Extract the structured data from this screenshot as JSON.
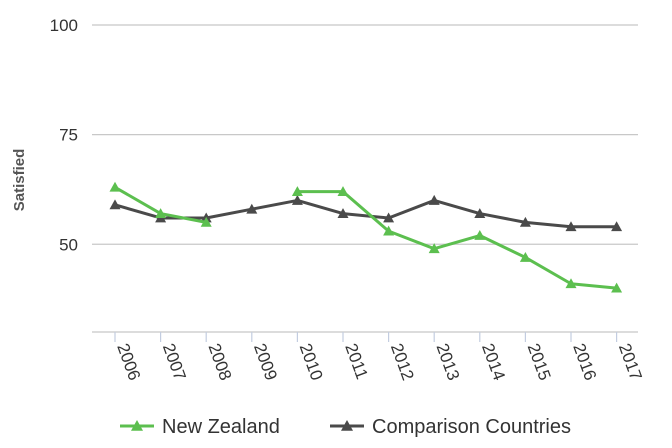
{
  "chart_data": {
    "type": "line",
    "title": "",
    "xlabel": "",
    "ylabel": "Satisfied",
    "categories": [
      "2006",
      "2007",
      "2008",
      "2009",
      "2010",
      "2011",
      "2012",
      "2013",
      "2014",
      "2015",
      "2016",
      "2017"
    ],
    "yticks": [
      50,
      75,
      100
    ],
    "ylim": [
      30,
      100
    ],
    "grid": true,
    "legend_position": "bottom",
    "series": [
      {
        "name": "New Zealand",
        "color": "#5cbf4f",
        "marker": "triangle",
        "values": [
          63,
          57,
          55,
          null,
          62,
          62,
          53,
          49,
          52,
          47,
          41,
          40
        ]
      },
      {
        "name": "Comparison Countries",
        "color": "#4a4a4a",
        "marker": "triangle",
        "values": [
          59,
          56,
          56,
          58,
          60,
          57,
          56,
          60,
          57,
          55,
          54,
          54
        ]
      }
    ]
  }
}
